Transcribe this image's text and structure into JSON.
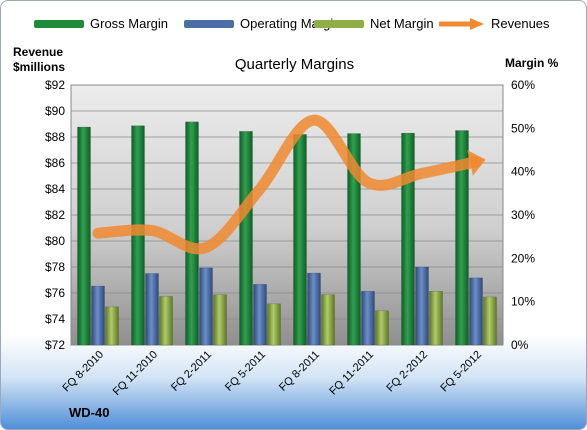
{
  "legend": [
    {
      "label": "Gross Margin",
      "color": "#1f8a3a"
    },
    {
      "label": "Operating Margin",
      "color": "#4a6ea8"
    },
    {
      "label": "Net Margin",
      "color": "#8fae45"
    },
    {
      "label": "Revenues",
      "color": "#f08a30"
    }
  ],
  "company": "WD-40",
  "chart_data": {
    "type": "bar",
    "title": "Quarterly Margins",
    "ylabel_left_line1": "Revenue",
    "ylabel_left_line2": "$millions",
    "ylabel_right": "Margin %",
    "categories": [
      "FQ 8-2010",
      "FQ 11-2010",
      "FQ 2-2011",
      "FQ 5-2011",
      "FQ 8-2011",
      "FQ 11-2011",
      "FQ 2-2012",
      "FQ 5-2012"
    ],
    "margin_axis": {
      "min": 0,
      "max": 60,
      "ticks": [
        "0%",
        "10%",
        "20%",
        "30%",
        "40%",
        "50%",
        "60%"
      ]
    },
    "revenue_axis": {
      "min": 72,
      "max": 92,
      "ticks": [
        "$72",
        "$74",
        "$76",
        "$78",
        "$80",
        "$82",
        "$84",
        "$86",
        "$88",
        "$90",
        "$92"
      ]
    },
    "series": [
      {
        "name": "Gross Margin",
        "axis": "margin",
        "color": "#1f8a3a",
        "values": [
          50.3,
          50.6,
          51.5,
          49.3,
          48.6,
          48.8,
          48.9,
          49.5
        ]
      },
      {
        "name": "Operating Margin",
        "axis": "margin",
        "color": "#4a6ea8",
        "values": [
          13.6,
          16.5,
          17.8,
          14.0,
          16.6,
          12.4,
          18.0,
          15.5
        ]
      },
      {
        "name": "Net Margin",
        "axis": "margin",
        "color": "#8fae45",
        "values": [
          8.8,
          11.2,
          11.6,
          9.5,
          11.6,
          7.9,
          12.4,
          11.1
        ]
      },
      {
        "name": "Revenues",
        "axis": "revenue",
        "type": "line",
        "color": "#f08a30",
        "values": [
          80.6,
          80.8,
          79.5,
          84.0,
          89.3,
          84.5,
          85.2,
          86.1
        ]
      }
    ],
    "grid": true
  }
}
